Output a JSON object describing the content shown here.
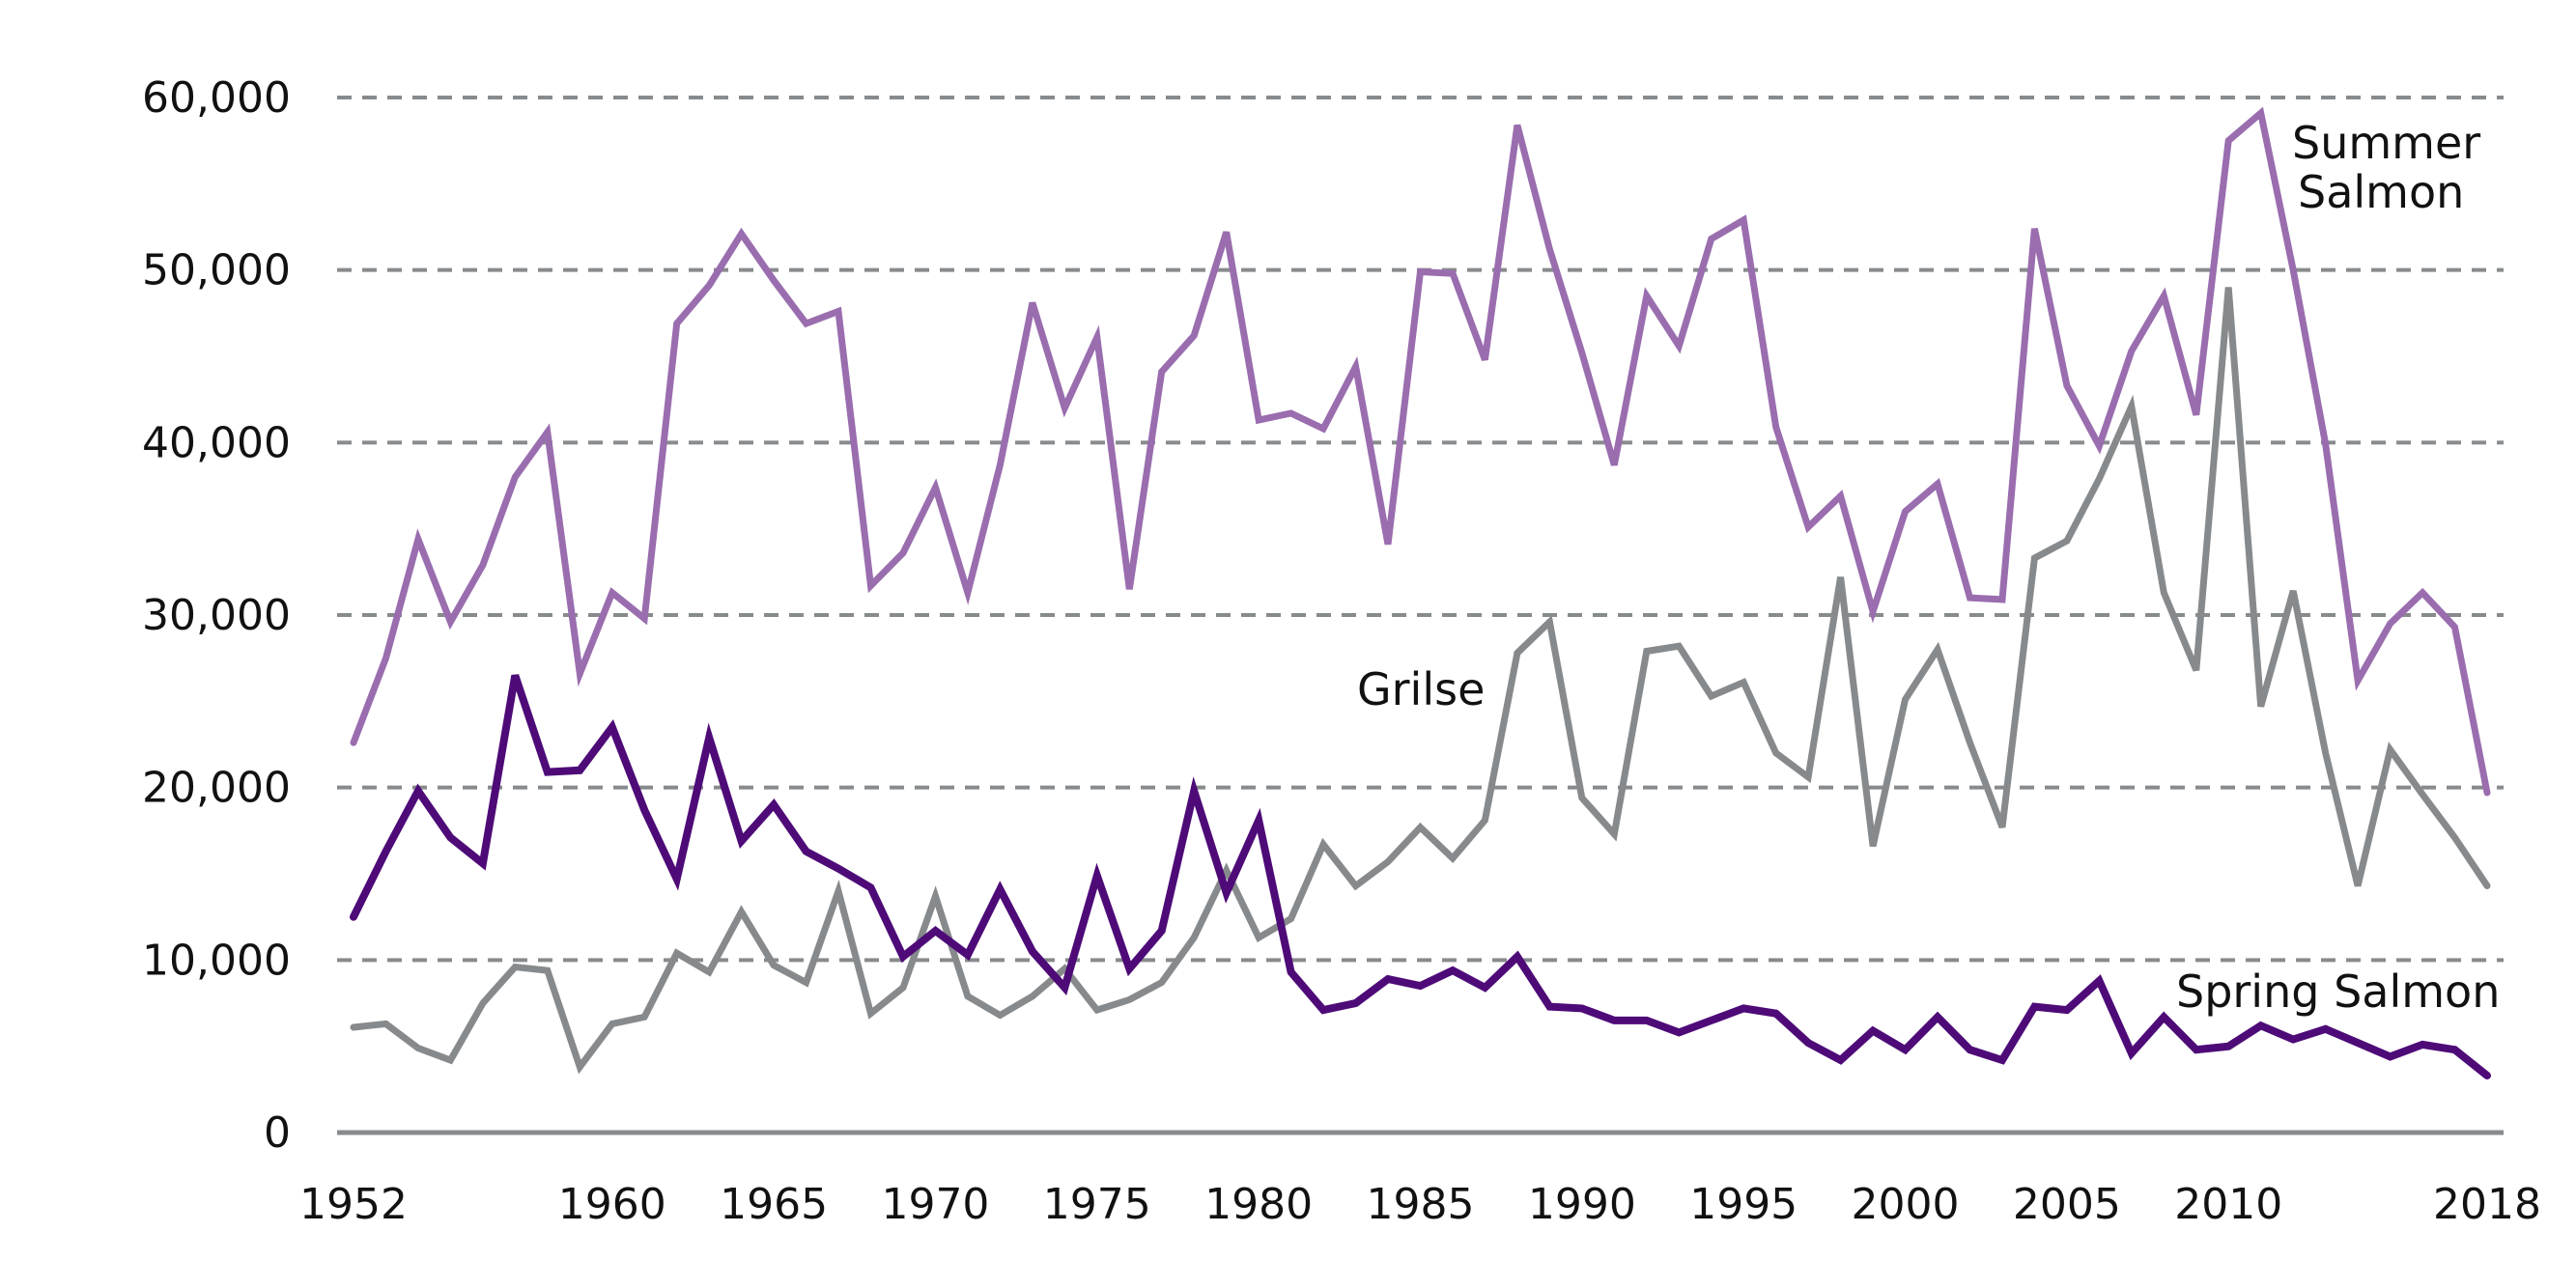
{
  "chart_data": {
    "type": "line",
    "title": "",
    "xlabel": "",
    "ylabel": "",
    "ylim": [
      0,
      60000
    ],
    "xlim": [
      1952,
      2018
    ],
    "grid": true,
    "legend": "inline-labels",
    "y_ticks": [
      0,
      10000,
      20000,
      30000,
      40000,
      50000,
      60000
    ],
    "y_tick_labels": [
      "0",
      "10,000",
      "20,000",
      "30,000",
      "40,000",
      "50,000",
      "60,000"
    ],
    "x_ticks": [
      1952,
      1960,
      1965,
      1970,
      1975,
      1980,
      1985,
      1990,
      1995,
      2000,
      2005,
      2010,
      2018
    ],
    "x_tick_labels": [
      "1952",
      "1960",
      "1965",
      "1970",
      "1975",
      "1980",
      "1985",
      "1990",
      "1995",
      "2000",
      "2005",
      "2010",
      "2018"
    ],
    "x": [
      1952,
      1953,
      1954,
      1955,
      1956,
      1957,
      1958,
      1959,
      1960,
      1961,
      1962,
      1963,
      1964,
      1965,
      1966,
      1967,
      1968,
      1969,
      1970,
      1971,
      1972,
      1973,
      1974,
      1975,
      1976,
      1977,
      1978,
      1979,
      1980,
      1981,
      1982,
      1983,
      1984,
      1985,
      1986,
      1987,
      1988,
      1989,
      1990,
      1991,
      1992,
      1993,
      1994,
      1995,
      1996,
      1997,
      1998,
      1999,
      2000,
      2001,
      2002,
      2003,
      2004,
      2005,
      2006,
      2007,
      2008,
      2009,
      2010,
      2011,
      2012,
      2013,
      2014,
      2015,
      2016,
      2017,
      2018
    ],
    "series": [
      {
        "name": "Summer Salmon",
        "label_lines": [
          "Summer",
          "Salmon"
        ],
        "color": "#9a6daf",
        "values": [
          22600,
          27500,
          34400,
          29600,
          32900,
          38000,
          40600,
          26600,
          31300,
          29800,
          46900,
          49100,
          52100,
          49400,
          46900,
          47600,
          31700,
          33600,
          37400,
          31300,
          38700,
          48100,
          42000,
          46100,
          31500,
          44100,
          46200,
          52200,
          41300,
          41700,
          40800,
          44400,
          34100,
          49900,
          49800,
          44800,
          58400,
          51200,
          45200,
          38700,
          48500,
          45600,
          51800,
          52900,
          40900,
          35100,
          36900,
          30200,
          36000,
          37600,
          31000,
          30900,
          52400,
          43300,
          39800,
          45300,
          48500,
          41600,
          57500,
          59100,
          50000,
          39900,
          26200,
          29500,
          31300,
          29300,
          19700
        ]
      },
      {
        "name": "Grilse",
        "label_lines": [
          "Grilse"
        ],
        "color": "#878a8c",
        "values": [
          6100,
          6300,
          4900,
          4200,
          7500,
          9600,
          9400,
          3800,
          6300,
          6700,
          10400,
          9300,
          12800,
          9700,
          8700,
          14000,
          6900,
          8400,
          13700,
          7900,
          6800,
          7900,
          9500,
          7100,
          7700,
          8700,
          11300,
          15200,
          11300,
          12400,
          16700,
          14300,
          15700,
          17700,
          15900,
          18100,
          27800,
          29600,
          19400,
          17300,
          27900,
          28200,
          25300,
          26100,
          22000,
          20600,
          32200,
          16600,
          25100,
          28000,
          22600,
          17700,
          33300,
          34300,
          37900,
          42100,
          31300,
          26800,
          49000,
          24700,
          31400,
          22000,
          14300,
          22200,
          19600,
          17100,
          14300
        ]
      },
      {
        "name": "Spring Salmon",
        "label_lines": [
          "Spring Salmon"
        ],
        "color": "#4e0b78",
        "values": [
          12500,
          16300,
          19800,
          17100,
          15600,
          26500,
          20900,
          21000,
          23500,
          18700,
          14700,
          22900,
          16900,
          19000,
          16300,
          15300,
          14200,
          10200,
          11700,
          10300,
          14100,
          10500,
          8400,
          14900,
          9500,
          11700,
          19800,
          13900,
          18100,
          9300,
          7100,
          7500,
          8900,
          8500,
          9400,
          8400,
          10200,
          7300,
          7200,
          6500,
          6500,
          5800,
          6500,
          7200,
          6900,
          5200,
          4200,
          5900,
          4800,
          6700,
          4800,
          4200,
          7300,
          7100,
          8800,
          4600,
          6700,
          4800,
          5000,
          6200,
          5400,
          6000,
          5200,
          4400,
          5100,
          4800,
          3300
        ]
      }
    ],
    "gridline_color": "#888b8d",
    "axis_color": "#888b8d"
  }
}
